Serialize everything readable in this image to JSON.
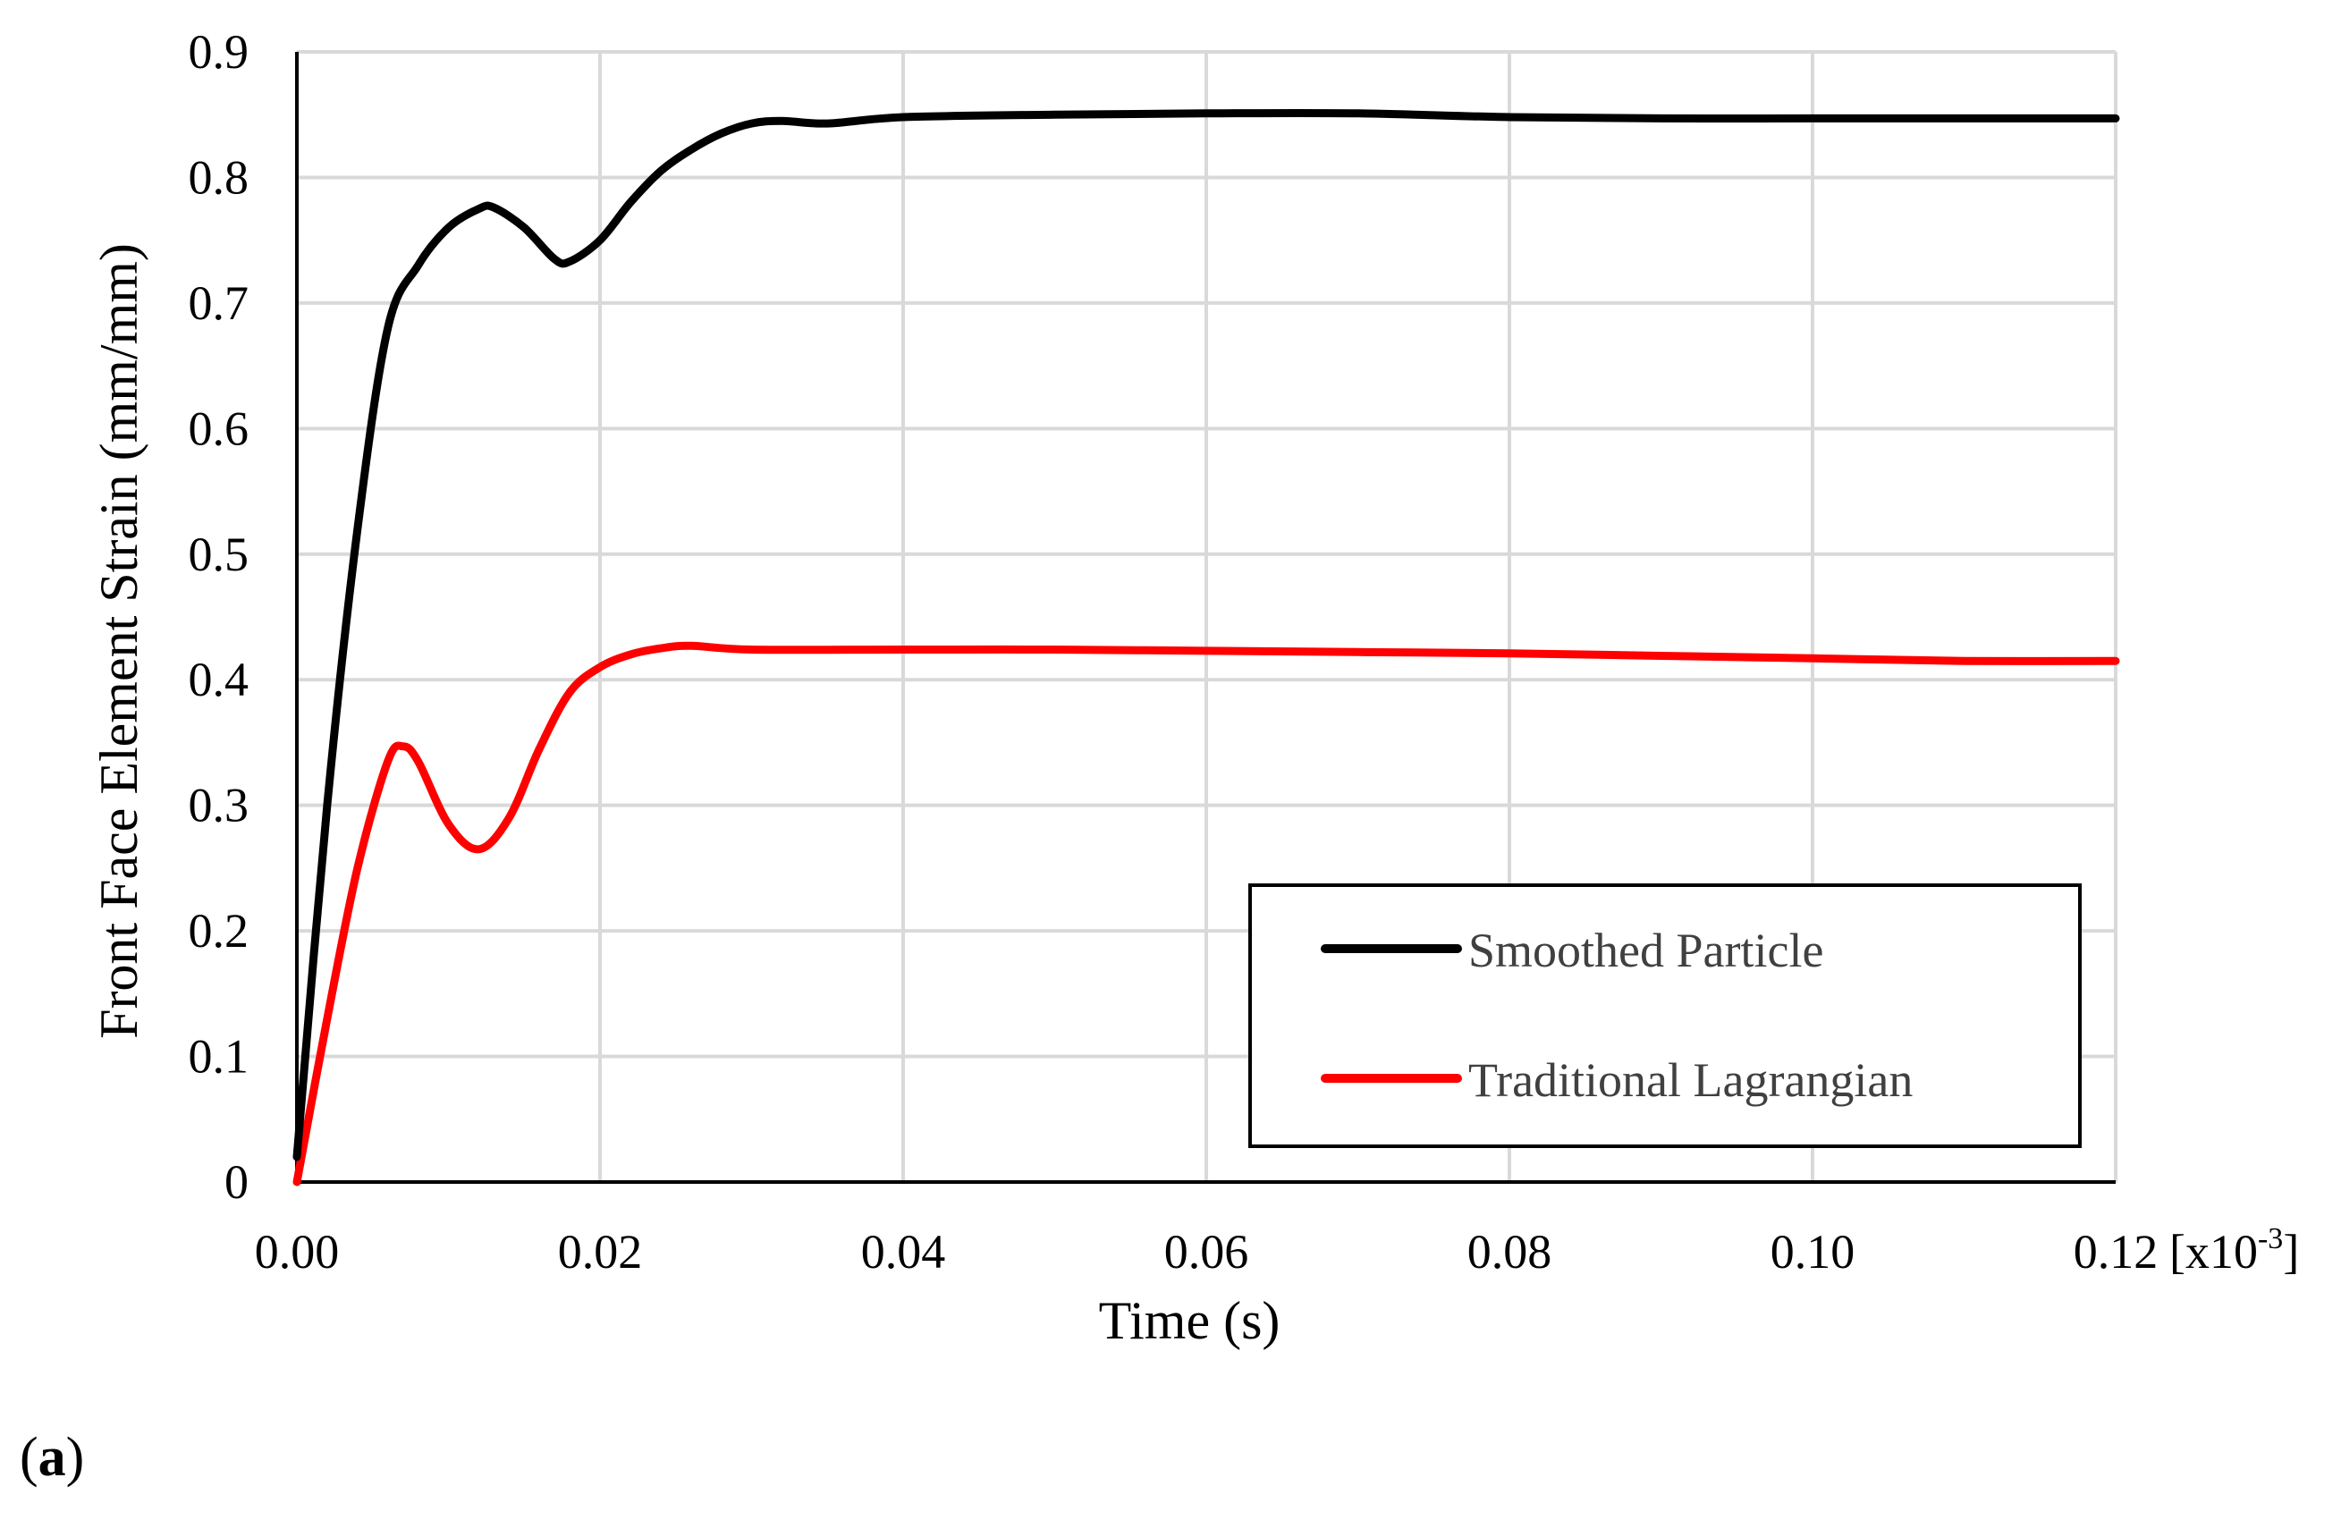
{
  "panel_label": {
    "open": "(",
    "letter": "a",
    "close": ")"
  },
  "chart_data": {
    "type": "line",
    "xlabel": "Time (s)",
    "x_unit_multiplier": {
      "base": "[x10",
      "exponent": "-3",
      "close": "]"
    },
    "ylabel": "Front Face Element Strain (mm/mm)",
    "xlim": [
      0,
      0.12
    ],
    "ylim": [
      0,
      0.9
    ],
    "xticks": [
      0,
      0.02,
      0.04,
      0.06,
      0.08,
      0.1,
      0.12
    ],
    "xtick_labels": [
      "0.00",
      "0.02",
      "0.04",
      "0.06",
      "0.08",
      "0.10",
      "0.12"
    ],
    "yticks": [
      0,
      0.1,
      0.2,
      0.3,
      0.4,
      0.5,
      0.6,
      0.7,
      0.8,
      0.9
    ],
    "ytick_labels": [
      "0",
      "0.1",
      "0.2",
      "0.3",
      "0.4",
      "0.5",
      "0.6",
      "0.7",
      "0.8",
      "0.9"
    ],
    "grid": true,
    "legend_position": "bottom-right",
    "series": [
      {
        "name": "Smoothed Particle",
        "color": "#000000",
        "x": [
          0,
          0.002,
          0.004,
          0.006,
          0.008,
          0.01,
          0.012,
          0.013,
          0.015,
          0.017,
          0.018,
          0.02,
          0.022,
          0.024,
          0.026,
          0.028,
          0.03,
          0.032,
          0.035,
          0.04,
          0.05,
          0.06,
          0.07,
          0.08,
          0.09,
          0.1,
          0.11,
          0.12
        ],
        "y": [
          0.02,
          0.3,
          0.52,
          0.68,
          0.73,
          0.76,
          0.775,
          0.776,
          0.76,
          0.735,
          0.733,
          0.75,
          0.78,
          0.805,
          0.822,
          0.835,
          0.843,
          0.845,
          0.843,
          0.848,
          0.85,
          0.851,
          0.851,
          0.848,
          0.847,
          0.847,
          0.847,
          0.847
        ]
      },
      {
        "name": "Traditional Lagrangian",
        "color": "#ff0000",
        "x": [
          0,
          0.002,
          0.004,
          0.006,
          0.007,
          0.008,
          0.01,
          0.012,
          0.014,
          0.016,
          0.018,
          0.02,
          0.022,
          0.024,
          0.026,
          0.03,
          0.04,
          0.05,
          0.06,
          0.07,
          0.08,
          0.09,
          0.1,
          0.11,
          0.12
        ],
        "y": [
          0.0,
          0.13,
          0.25,
          0.335,
          0.347,
          0.335,
          0.285,
          0.265,
          0.29,
          0.345,
          0.39,
          0.41,
          0.42,
          0.425,
          0.427,
          0.424,
          0.424,
          0.424,
          0.423,
          0.422,
          0.421,
          0.419,
          0.417,
          0.415,
          0.415
        ]
      }
    ]
  }
}
